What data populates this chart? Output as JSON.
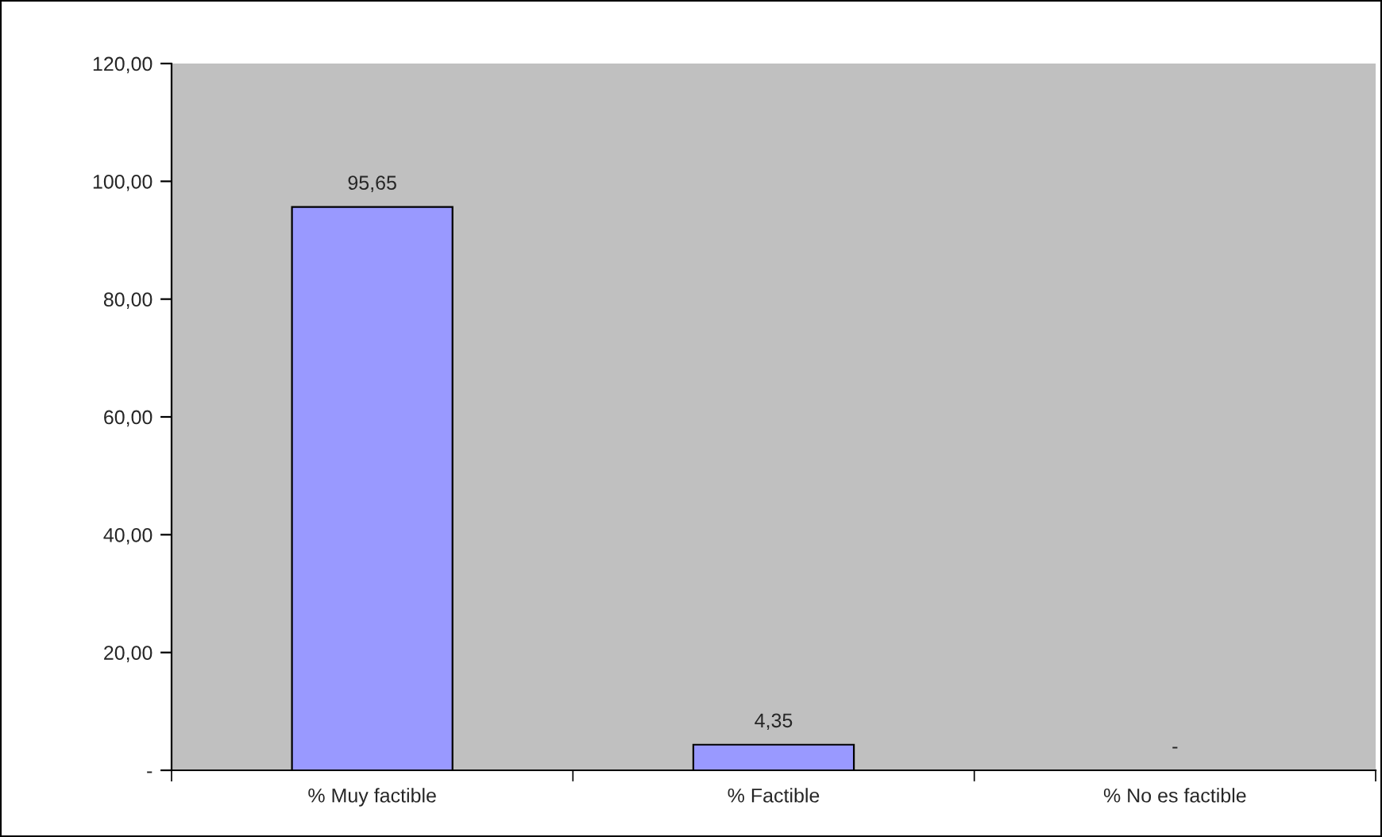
{
  "chart_data": {
    "type": "bar",
    "categories": [
      "% Muy factible",
      "% Factible",
      "% No es factible"
    ],
    "values": [
      95.65,
      4.35,
      0
    ],
    "value_labels": [
      "95,65",
      "4,35",
      "-"
    ],
    "color": "#9999ff",
    "ylim": [
      0,
      120
    ],
    "yticks": [
      {
        "value": 0,
        "label": "-"
      },
      {
        "value": 20,
        "label": "20,00"
      },
      {
        "value": 40,
        "label": "40,00"
      },
      {
        "value": 60,
        "label": "60,00"
      },
      {
        "value": 80,
        "label": "80,00"
      },
      {
        "value": 100,
        "label": "100,00"
      },
      {
        "value": 120,
        "label": "120,00"
      }
    ],
    "grid": false,
    "legend": false
  }
}
